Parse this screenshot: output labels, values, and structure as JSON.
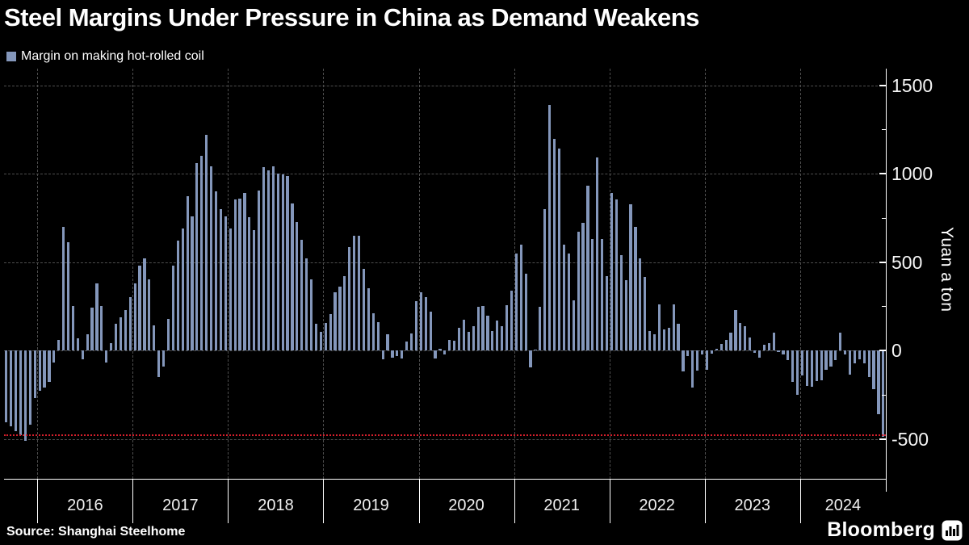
{
  "title": "Steel Margins Under Pressure in China as Demand Weakens",
  "legend": {
    "label": "Margin on making hot-rolled coil",
    "swatch_color": "#8497bb"
  },
  "source": "Source: Shanghai Steelhome",
  "branding": "Bloomberg",
  "y_axis": {
    "title": "Yuan a ton",
    "major_ticks": [
      {
        "label": "1500",
        "value": 1500
      },
      {
        "label": "1000",
        "value": 1000
      },
      {
        "label": "500",
        "value": 500
      },
      {
        "label": "0",
        "value": 0
      },
      {
        "label": "-500",
        "value": -500
      }
    ],
    "minor_tick_values": [
      1250,
      750,
      250,
      -250
    ]
  },
  "x_axis": {
    "year_labels": [
      "2016",
      "2017",
      "2018",
      "2019",
      "2020",
      "2021",
      "2022",
      "2023",
      "2024"
    ]
  },
  "reference_line": {
    "value": -475,
    "color": "#d61f2c",
    "style": "dotted"
  },
  "chart_data": {
    "type": "bar",
    "title": "Steel Margins Under Pressure in China as Demand Weakens",
    "series_name": "Margin on making hot-rolled coil",
    "unit": "Yuan a ton",
    "start_period": "Sep 2015",
    "end_period": "Oct 2024",
    "ylim": [
      -750,
      1550
    ],
    "bar_color": "#8497bb",
    "grid": "dashed",
    "legend_position": "top-left",
    "year_start_indices": [
      7,
      27,
      47,
      67,
      87,
      107,
      127,
      147,
      167
    ],
    "values": [
      -405,
      -430,
      -455,
      -480,
      -510,
      -420,
      -270,
      -228,
      -210,
      -180,
      -70,
      60,
      700,
      610,
      250,
      70,
      -50,
      90,
      240,
      380,
      250,
      -70,
      40,
      150,
      185,
      230,
      300,
      380,
      480,
      520,
      400,
      140,
      -150,
      -90,
      180,
      480,
      620,
      690,
      870,
      760,
      1060,
      1100,
      1220,
      1040,
      900,
      800,
      760,
      690,
      855,
      860,
      890,
      755,
      680,
      905,
      1035,
      1020,
      1040,
      1000,
      995,
      985,
      830,
      725,
      625,
      520,
      400,
      150,
      105,
      155,
      205,
      330,
      360,
      420,
      585,
      650,
      650,
      460,
      350,
      210,
      160,
      -50,
      90,
      -40,
      -30,
      -45,
      50,
      95,
      280,
      330,
      300,
      220,
      -45,
      10,
      -25,
      60,
      55,
      130,
      175,
      105,
      135,
      245,
      250,
      195,
      110,
      170,
      135,
      255,
      340,
      550,
      600,
      435,
      -95,
      5,
      245,
      800,
      1390,
      1195,
      1140,
      600,
      550,
      285,
      670,
      720,
      930,
      630,
      1090,
      630,
      420,
      890,
      855,
      540,
      395,
      825,
      700,
      520,
      415,
      110,
      90,
      260,
      120,
      130,
      260,
      150,
      -120,
      -30,
      -210,
      -115,
      -25,
      -110,
      -20,
      10,
      35,
      60,
      100,
      230,
      155,
      135,
      75,
      -15,
      -40,
      30,
      40,
      100,
      -10,
      -25,
      -55,
      -180,
      -250,
      -140,
      -200,
      -205,
      -175,
      -170,
      -110,
      -90,
      -55,
      100,
      -25,
      -135,
      -75,
      -50,
      -75,
      -150,
      -220,
      -360,
      -490
    ]
  }
}
